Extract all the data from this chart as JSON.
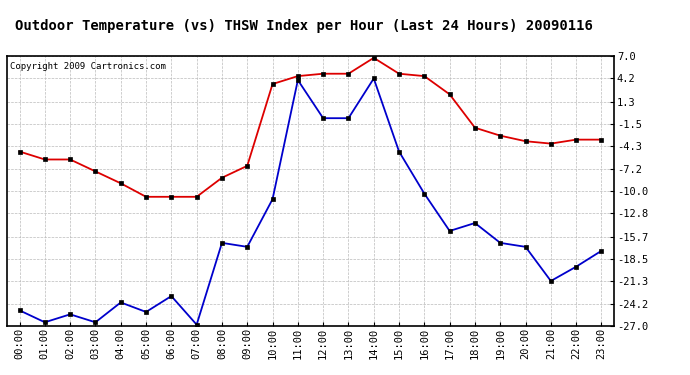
{
  "title": "Outdoor Temperature (vs) THSW Index per Hour (Last 24 Hours) 20090116",
  "copyright": "Copyright 2009 Cartronics.com",
  "hours": [
    "00:00",
    "01:00",
    "02:00",
    "03:00",
    "04:00",
    "05:00",
    "06:00",
    "07:00",
    "08:00",
    "09:00",
    "10:00",
    "11:00",
    "12:00",
    "13:00",
    "14:00",
    "15:00",
    "16:00",
    "17:00",
    "18:00",
    "19:00",
    "20:00",
    "21:00",
    "22:00",
    "23:00"
  ],
  "temp_red": [
    -5.0,
    -6.0,
    -6.0,
    -7.5,
    -9.0,
    -10.7,
    -10.7,
    -10.7,
    -8.3,
    -6.8,
    3.5,
    4.5,
    4.8,
    4.8,
    6.8,
    4.8,
    4.5,
    2.2,
    -2.0,
    -3.0,
    -3.7,
    -4.0,
    -3.5,
    -3.5
  ],
  "thsw_blue": [
    -25.0,
    -26.5,
    -25.5,
    -26.5,
    -24.0,
    -25.2,
    -23.2,
    -26.8,
    -16.5,
    -17.0,
    -11.0,
    4.0,
    -0.8,
    -0.8,
    4.2,
    -5.0,
    -10.3,
    -15.0,
    -14.0,
    -16.5,
    -17.0,
    -21.3,
    -19.5,
    -17.5
  ],
  "yticks": [
    7.0,
    4.2,
    1.3,
    -1.5,
    -4.3,
    -7.2,
    -10.0,
    -12.8,
    -15.7,
    -18.5,
    -21.3,
    -24.2,
    -27.0
  ],
  "ymin": -27.0,
  "ymax": 7.0,
  "bg_color": "#ffffff",
  "plot_bg_color": "#ffffff",
  "grid_color": "#bbbbbb",
  "red_color": "#dd0000",
  "blue_color": "#0000cc",
  "title_fontsize": 10,
  "axis_fontsize": 7.5,
  "copyright_fontsize": 6.5
}
